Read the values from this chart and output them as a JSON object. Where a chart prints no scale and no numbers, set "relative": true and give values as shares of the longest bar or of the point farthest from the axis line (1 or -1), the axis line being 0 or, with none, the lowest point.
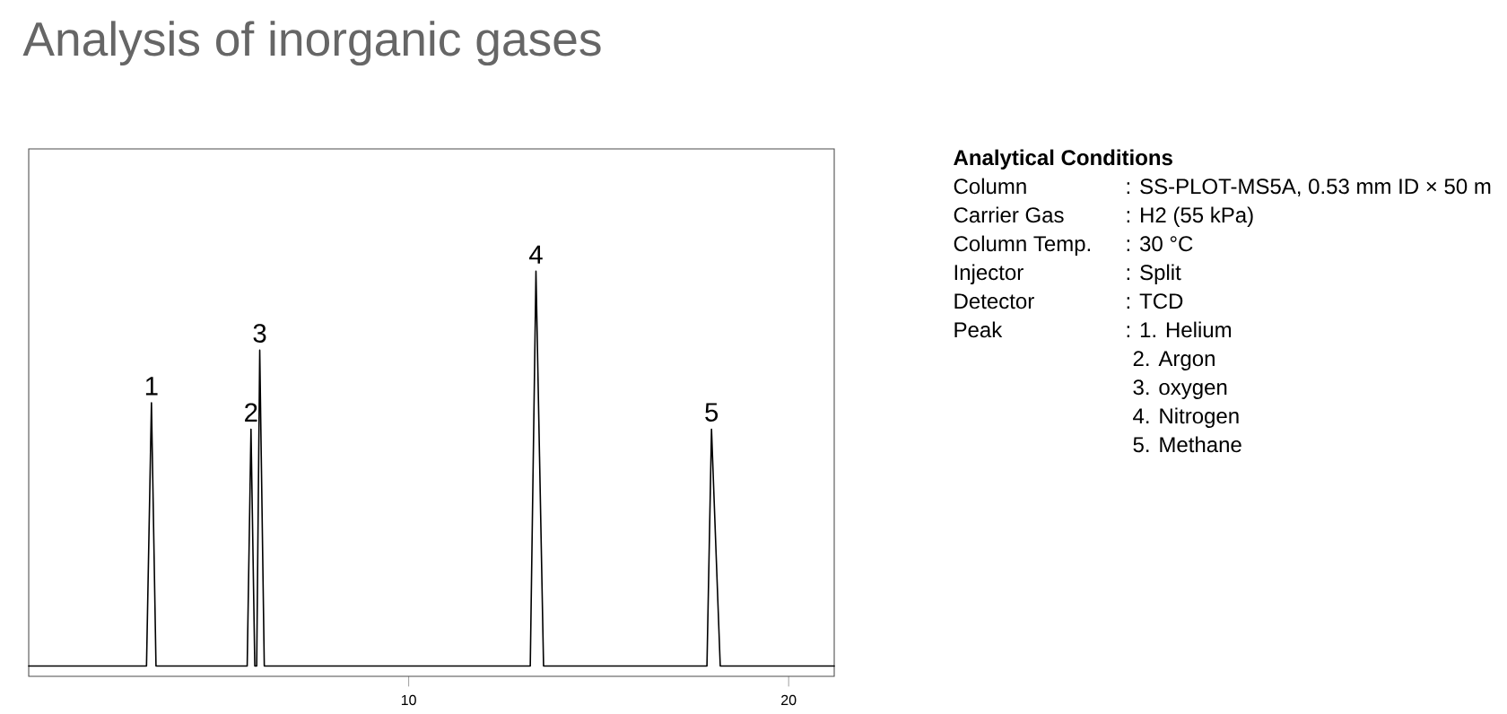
{
  "chart_data": {
    "type": "line",
    "title": "Analysis of inorganic gases",
    "relative": true,
    "color": "#000000",
    "x": [
      0,
      3.1,
      3.23,
      3.35,
      5.75,
      5.85,
      5.95,
      6.0,
      6.08,
      6.2,
      13.2,
      13.35,
      13.55,
      17.85,
      17.97,
      18.2,
      21.2
    ],
    "values": [
      0,
      0,
      0.667,
      0,
      0,
      0.6,
      0,
      0,
      0.8,
      0,
      0,
      1,
      0,
      0,
      0.6,
      0,
      0
    ],
    "xlim": [
      0,
      21.2
    ],
    "xticks": [
      10,
      20
    ],
    "annotations": [
      {
        "text": "1",
        "x": 3.23,
        "y": 0.667
      },
      {
        "text": "2",
        "x": 5.85,
        "y": 0.6
      },
      {
        "text": "3",
        "x": 6.08,
        "y": 0.8
      },
      {
        "text": "4",
        "x": 13.35,
        "y": 1
      },
      {
        "text": "5",
        "x": 17.97,
        "y": 0.6
      },
      "Analytical Conditions",
      "Column",
      ": SS-PLOT-MS5A, 0.53 mm ID × 50 m",
      "Carrier Gas",
      ": H2 (55 kPa)",
      "Column Temp.",
      ": 30 °C",
      "Injector",
      ": Split",
      "Detector",
      ": TCD",
      "Peak",
      ": 1. Helium",
      "2. Argon",
      "3. oxygen",
      "4. Nitrogen",
      "5. Methane"
    ]
  }
}
